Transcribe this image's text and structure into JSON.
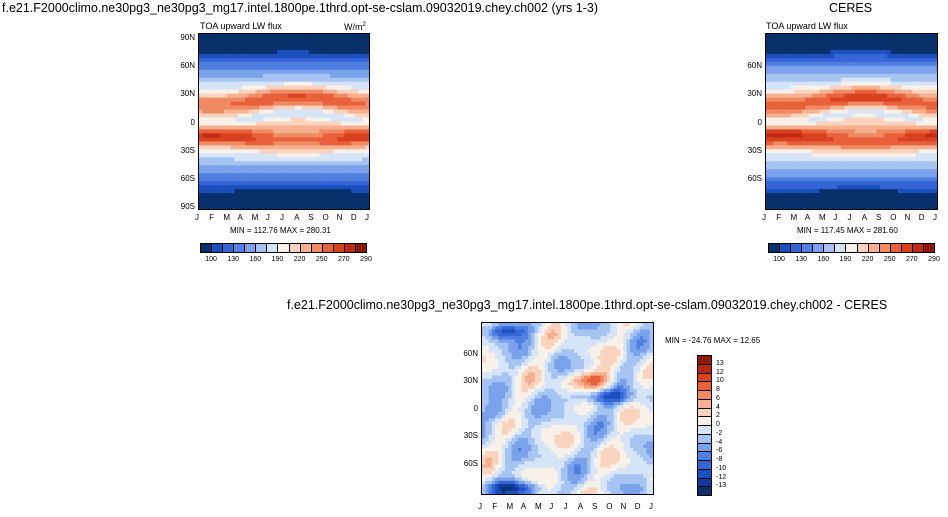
{
  "titles": {
    "left": "f.e21.F2000climo.ne30pg3_ne30pg3_mg17.intel.1800pe.1thrd.opt-se-cslam.09032019.chey.ch002 (yrs 1-3)",
    "right": "CERES",
    "bottom": "f.e21.F2000climo.ne30pg3_ne30pg3_mg17.intel.1800pe.1thrd.opt-se-cslam.09032019.chey.ch002 - CERES"
  },
  "chart_data": [
    {
      "type": "heatmap",
      "variable_label": "TOA upward LW flux",
      "units_label": "W/m",
      "units_sup": "2",
      "x_months": [
        "J",
        "F",
        "M",
        "A",
        "M",
        "J",
        "J",
        "A",
        "S",
        "O",
        "N",
        "D",
        "J"
      ],
      "y_labels": [
        "90N",
        "60N",
        "30N",
        "0",
        "30S",
        "60S",
        "90S"
      ],
      "stats": "MIN = 112.76 MAX = 280.31",
      "min": 112.76,
      "max": 280.31,
      "levels": [
        "100",
        "130",
        "160",
        "190",
        "220",
        "250",
        "270",
        "290"
      ],
      "colors": [
        "#08306b",
        "#1b4fbd",
        "#3465d6",
        "#4f7fe0",
        "#7aa2eb",
        "#a6c4f2",
        "#d5e4f7",
        "#f7f1ea",
        "#f9d3bd",
        "#f6b08f",
        "#f08a62",
        "#e8613a",
        "#d9401f",
        "#c02b15",
        "#8e1a0c"
      ]
    },
    {
      "type": "heatmap",
      "variable_label": "TOA upward LW flux",
      "x_months": [
        "J",
        "F",
        "M",
        "A",
        "M",
        "J",
        "J",
        "A",
        "S",
        "O",
        "N",
        "D",
        "J"
      ],
      "y_labels": [
        "60N",
        "30N",
        "0",
        "30S",
        "60S"
      ],
      "stats": "MIN = 117.45 MAX = 281.60",
      "min": 117.45,
      "max": 281.6,
      "levels": [
        "100",
        "130",
        "160",
        "190",
        "220",
        "250",
        "270",
        "290"
      ],
      "colors": [
        "#08306b",
        "#1b4fbd",
        "#3465d6",
        "#4f7fe0",
        "#7aa2eb",
        "#a6c4f2",
        "#d5e4f7",
        "#f7f1ea",
        "#f9d3bd",
        "#f6b08f",
        "#f08a62",
        "#e8613a",
        "#d9401f",
        "#c02b15",
        "#8e1a0c"
      ]
    },
    {
      "type": "heatmap",
      "x_months": [
        "J",
        "F",
        "M",
        "A",
        "M",
        "J",
        "J",
        "A",
        "S",
        "O",
        "N",
        "D",
        "J"
      ],
      "y_labels": [
        "60N",
        "30N",
        "0",
        "30S",
        "60S"
      ],
      "stats": "MIN = -24.76 MAX =  12.65",
      "min": -24.76,
      "max": 12.65,
      "levels": [
        "13",
        "12",
        "10",
        "8",
        "6",
        "4",
        "2",
        "0",
        "-2",
        "-4",
        "-6",
        "-8",
        "-10",
        "-12",
        "-13"
      ],
      "colors": [
        "#8e1a0c",
        "#b82611",
        "#d9401f",
        "#e8613a",
        "#f08a62",
        "#f6b08f",
        "#f9d3bd",
        "#f7f1ea",
        "#d5e4f7",
        "#a6c4f2",
        "#7aa2eb",
        "#4f7fe0",
        "#3465d6",
        "#1b4fbd",
        "#0f3a9a",
        "#08306b"
      ]
    }
  ]
}
